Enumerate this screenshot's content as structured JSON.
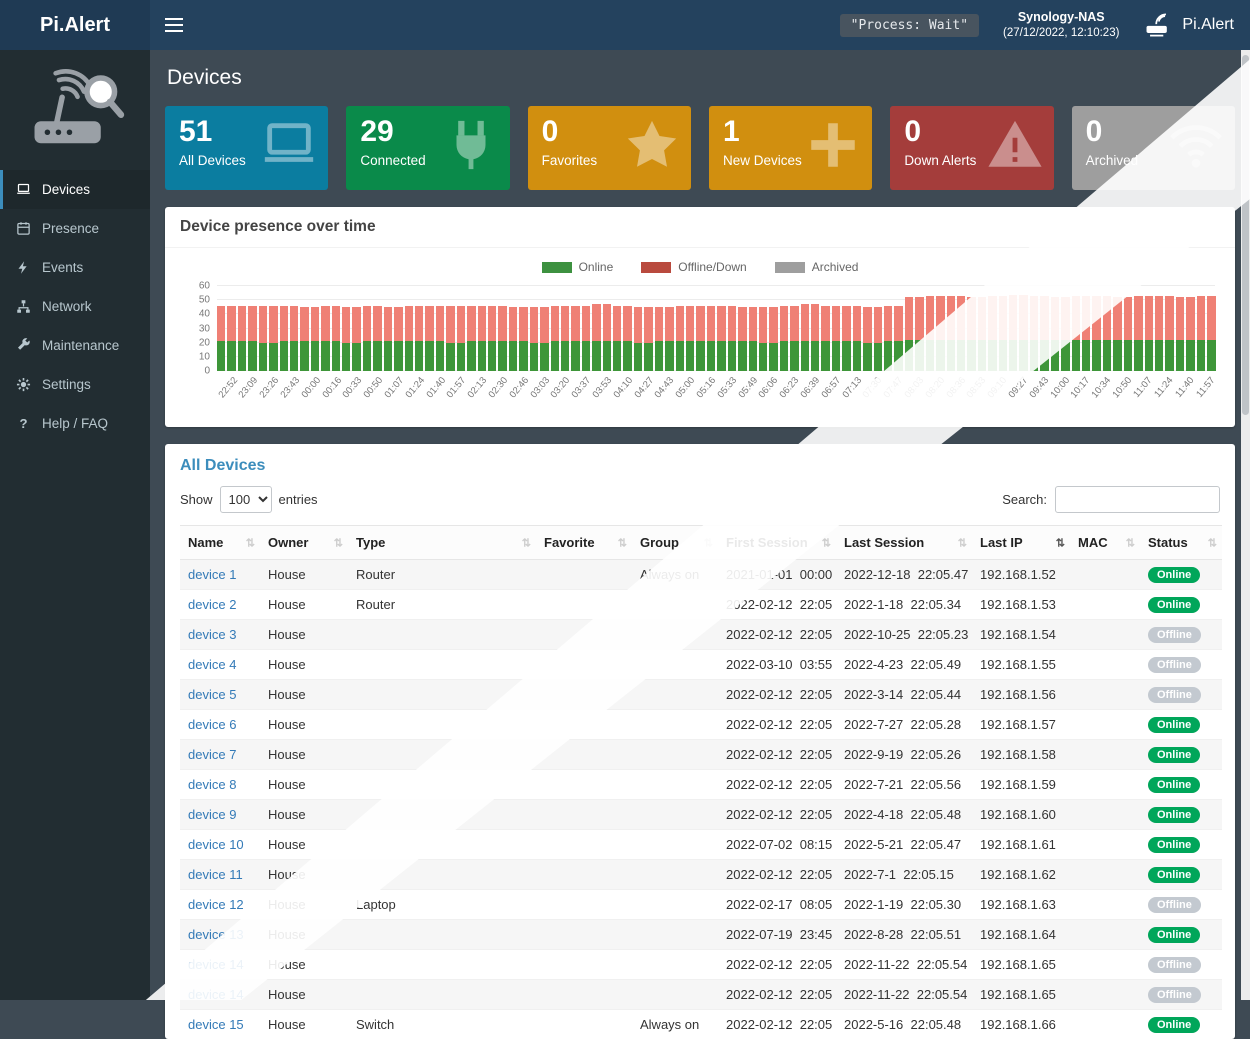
{
  "navbar": {
    "brand": "Pi.Alert",
    "process_badge": "\"Process: Wait\"",
    "host": "Synology-NAS",
    "host_time": "(27/12/2022, 12:10:23)",
    "logo_label": "Pi.Alert"
  },
  "sidebar": {
    "items": [
      {
        "label": "Devices",
        "icon": "laptop-icon",
        "active": true
      },
      {
        "label": "Presence",
        "icon": "calendar-icon",
        "active": false
      },
      {
        "label": "Events",
        "icon": "bolt-icon",
        "active": false
      },
      {
        "label": "Network",
        "icon": "network-icon",
        "active": false
      },
      {
        "label": "Maintenance",
        "icon": "wrench-icon",
        "active": false
      },
      {
        "label": "Settings",
        "icon": "gear-icon",
        "active": false
      },
      {
        "label": "Help / FAQ",
        "icon": "question-icon",
        "active": false
      }
    ]
  },
  "page": {
    "title": "Devices"
  },
  "summary_cards": [
    {
      "value": "51",
      "label": "All Devices",
      "color": "#0b7da0",
      "icon": "laptop-icon"
    },
    {
      "value": "29",
      "label": "Connected",
      "color": "#0a8a4a",
      "icon": "plug-icon"
    },
    {
      "value": "0",
      "label": "Favorites",
      "color": "#d18f0f",
      "icon": "star-icon"
    },
    {
      "value": "1",
      "label": "New Devices",
      "color": "#d18f0f",
      "icon": "plus-icon"
    },
    {
      "value": "0",
      "label": "Down Alerts",
      "color": "#a43d3b",
      "icon": "warning-icon"
    },
    {
      "value": "0",
      "label": "Archived",
      "color": "#9e9e9e",
      "icon": "radar-icon"
    }
  ],
  "chart": {
    "panel_title": "Device presence over time",
    "legend": [
      {
        "label": "Online",
        "color": "#3d9140"
      },
      {
        "label": "Offline/Down",
        "color": "#b94a3e"
      },
      {
        "label": "Archived",
        "color": "#9e9e9e"
      }
    ]
  },
  "chart_data": {
    "type": "bar",
    "stacked": true,
    "title": "Device presence over time",
    "x": [
      "22:52",
      "23:09",
      "23:26",
      "23:43",
      "00:00",
      "00:16",
      "00:33",
      "00:50",
      "01:07",
      "01:24",
      "01:40",
      "01:57",
      "02:13",
      "02:30",
      "02:46",
      "03:03",
      "03:20",
      "03:37",
      "03:53",
      "04:10",
      "04:27",
      "04:43",
      "05:00",
      "05:16",
      "05:33",
      "05:49",
      "06:06",
      "06:23",
      "06:39",
      "06:57",
      "07:13",
      "07:30",
      "07:47",
      "08:03",
      "08:20",
      "08:36",
      "08:53",
      "09:10",
      "09:27",
      "09:43",
      "10:00",
      "10:17",
      "10:34",
      "10:50",
      "11:07",
      "11:24",
      "11:40",
      "11:57"
    ],
    "series": [
      {
        "name": "Online",
        "color": "#3e9639",
        "values": [
          21,
          21,
          20,
          21,
          21,
          21,
          20,
          21,
          21,
          21,
          21,
          20,
          21,
          21,
          21,
          20,
          21,
          21,
          21,
          21,
          20,
          21,
          21,
          21,
          21,
          21,
          20,
          21,
          21,
          21,
          21,
          20,
          21,
          22,
          22,
          22,
          22,
          22,
          22,
          22,
          22,
          22,
          22,
          22,
          22,
          22,
          22,
          22
        ]
      },
      {
        "name": "Offline/Down",
        "color": "#ef8075",
        "values": [
          25,
          25,
          26,
          25,
          24,
          25,
          25,
          25,
          24,
          25,
          25,
          26,
          25,
          25,
          24,
          25,
          25,
          25,
          26,
          25,
          25,
          24,
          25,
          25,
          25,
          24,
          25,
          25,
          26,
          25,
          25,
          25,
          25,
          30,
          31,
          31,
          30,
          31,
          32,
          31,
          30,
          31,
          31,
          30,
          31,
          31,
          30,
          31
        ]
      },
      {
        "name": "Archived",
        "color": "#9e9e9e",
        "values": [
          0,
          0,
          0,
          0,
          0,
          0,
          0,
          0,
          0,
          0,
          0,
          0,
          0,
          0,
          0,
          0,
          0,
          0,
          0,
          0,
          0,
          0,
          0,
          0,
          0,
          0,
          0,
          0,
          0,
          0,
          0,
          0,
          0,
          0,
          0,
          0,
          0,
          0,
          0,
          0,
          0,
          0,
          0,
          0,
          0,
          0,
          0,
          0
        ]
      }
    ],
    "ylim": [
      0,
      60
    ],
    "yticks": [
      0,
      10,
      20,
      30,
      40,
      50,
      60
    ],
    "legend_position": "top",
    "grid": true
  },
  "devices_panel": {
    "title": "All Devices",
    "show_label": "Show",
    "page_size": "100",
    "entries_label": "entries",
    "search_label": "Search:",
    "search_value": "",
    "sorted_column": "Last IP",
    "columns": [
      "Name",
      "Owner",
      "Type",
      "Favorite",
      "Group",
      "First Session",
      "Last Session",
      "Last IP",
      "MAC",
      "Status"
    ],
    "rows": [
      {
        "name": "device 1",
        "owner": "House",
        "type": "Router",
        "favorite": "",
        "group": "Always on",
        "first": "2021-01-01  00:00",
        "last": "2022-12-18  22:05.47",
        "ip": "192.168.1.52",
        "mac": "",
        "status": "Online"
      },
      {
        "name": "device 2",
        "owner": "House",
        "type": "Router",
        "favorite": "",
        "group": "",
        "first": "2022-02-12  22:05",
        "last": "2022-1-18  22:05.34",
        "ip": "192.168.1.53",
        "mac": "",
        "status": "Online"
      },
      {
        "name": "device 3",
        "owner": "House",
        "type": "",
        "favorite": "",
        "group": "",
        "first": "2022-02-12  22:05",
        "last": "2022-10-25  22:05.23",
        "ip": "192.168.1.54",
        "mac": "",
        "status": "Offline"
      },
      {
        "name": "device 4",
        "owner": "House",
        "type": "",
        "favorite": "",
        "group": "",
        "first": "2022-03-10  03:55",
        "last": "2022-4-23  22:05.49",
        "ip": "192.168.1.55",
        "mac": "",
        "status": "Offline"
      },
      {
        "name": "device 5",
        "owner": "House",
        "type": "",
        "favorite": "",
        "group": "",
        "first": "2022-02-12  22:05",
        "last": "2022-3-14  22:05.44",
        "ip": "192.168.1.56",
        "mac": "",
        "status": "Offline"
      },
      {
        "name": "device 6",
        "owner": "House",
        "type": "",
        "favorite": "",
        "group": "",
        "first": "2022-02-12  22:05",
        "last": "2022-7-27  22:05.28",
        "ip": "192.168.1.57",
        "mac": "",
        "status": "Online"
      },
      {
        "name": "device 7",
        "owner": "House",
        "type": "",
        "favorite": "",
        "group": "",
        "first": "2022-02-12  22:05",
        "last": "2022-9-19  22:05.26",
        "ip": "192.168.1.58",
        "mac": "",
        "status": "Online"
      },
      {
        "name": "device 8",
        "owner": "House",
        "type": "",
        "favorite": "",
        "group": "",
        "first": "2022-02-12  22:05",
        "last": "2022-7-21  22:05.56",
        "ip": "192.168.1.59",
        "mac": "",
        "status": "Online"
      },
      {
        "name": "device 9",
        "owner": "House",
        "type": "",
        "favorite": "",
        "group": "",
        "first": "2022-02-12  22:05",
        "last": "2022-4-18  22:05.48",
        "ip": "192.168.1.60",
        "mac": "",
        "status": "Online"
      },
      {
        "name": "device 10",
        "owner": "House",
        "type": "",
        "favorite": "",
        "group": "",
        "first": "2022-07-02  08:15",
        "last": "2022-5-21  22:05.47",
        "ip": "192.168.1.61",
        "mac": "",
        "status": "Online"
      },
      {
        "name": "device 11",
        "owner": "House",
        "type": "",
        "favorite": "",
        "group": "",
        "first": "2022-02-12  22:05",
        "last": "2022-7-1  22:05.15",
        "ip": "192.168.1.62",
        "mac": "",
        "status": "Online"
      },
      {
        "name": "device 12",
        "owner": "House",
        "type": "Laptop",
        "favorite": "",
        "group": "",
        "first": "2022-02-17  08:05",
        "last": "2022-1-19  22:05.30",
        "ip": "192.168.1.63",
        "mac": "",
        "status": "Offline"
      },
      {
        "name": "device 13",
        "owner": "House",
        "type": "",
        "favorite": "",
        "group": "",
        "first": "2022-07-19  23:45",
        "last": "2022-8-28  22:05.51",
        "ip": "192.168.1.64",
        "mac": "",
        "status": "Online"
      },
      {
        "name": "device 14",
        "owner": "House",
        "type": "",
        "favorite": "",
        "group": "",
        "first": "2022-02-12  22:05",
        "last": "2022-11-22  22:05.54",
        "ip": "192.168.1.65",
        "mac": "",
        "status": "Offline"
      },
      {
        "name": "device 14",
        "owner": "House",
        "type": "",
        "favorite": "",
        "group": "",
        "first": "2022-02-12  22:05",
        "last": "2022-11-22  22:05.54",
        "ip": "192.168.1.65",
        "mac": "",
        "status": "Offline"
      },
      {
        "name": "device 15",
        "owner": "House",
        "type": "Switch",
        "favorite": "",
        "group": "Always on",
        "first": "2022-02-12  22:05",
        "last": "2022-5-16  22:05.48",
        "ip": "192.168.1.66",
        "mac": "",
        "status": "Online"
      }
    ],
    "status_colors": {
      "online": "#00a65a",
      "offline": "#c3c9d0"
    }
  }
}
